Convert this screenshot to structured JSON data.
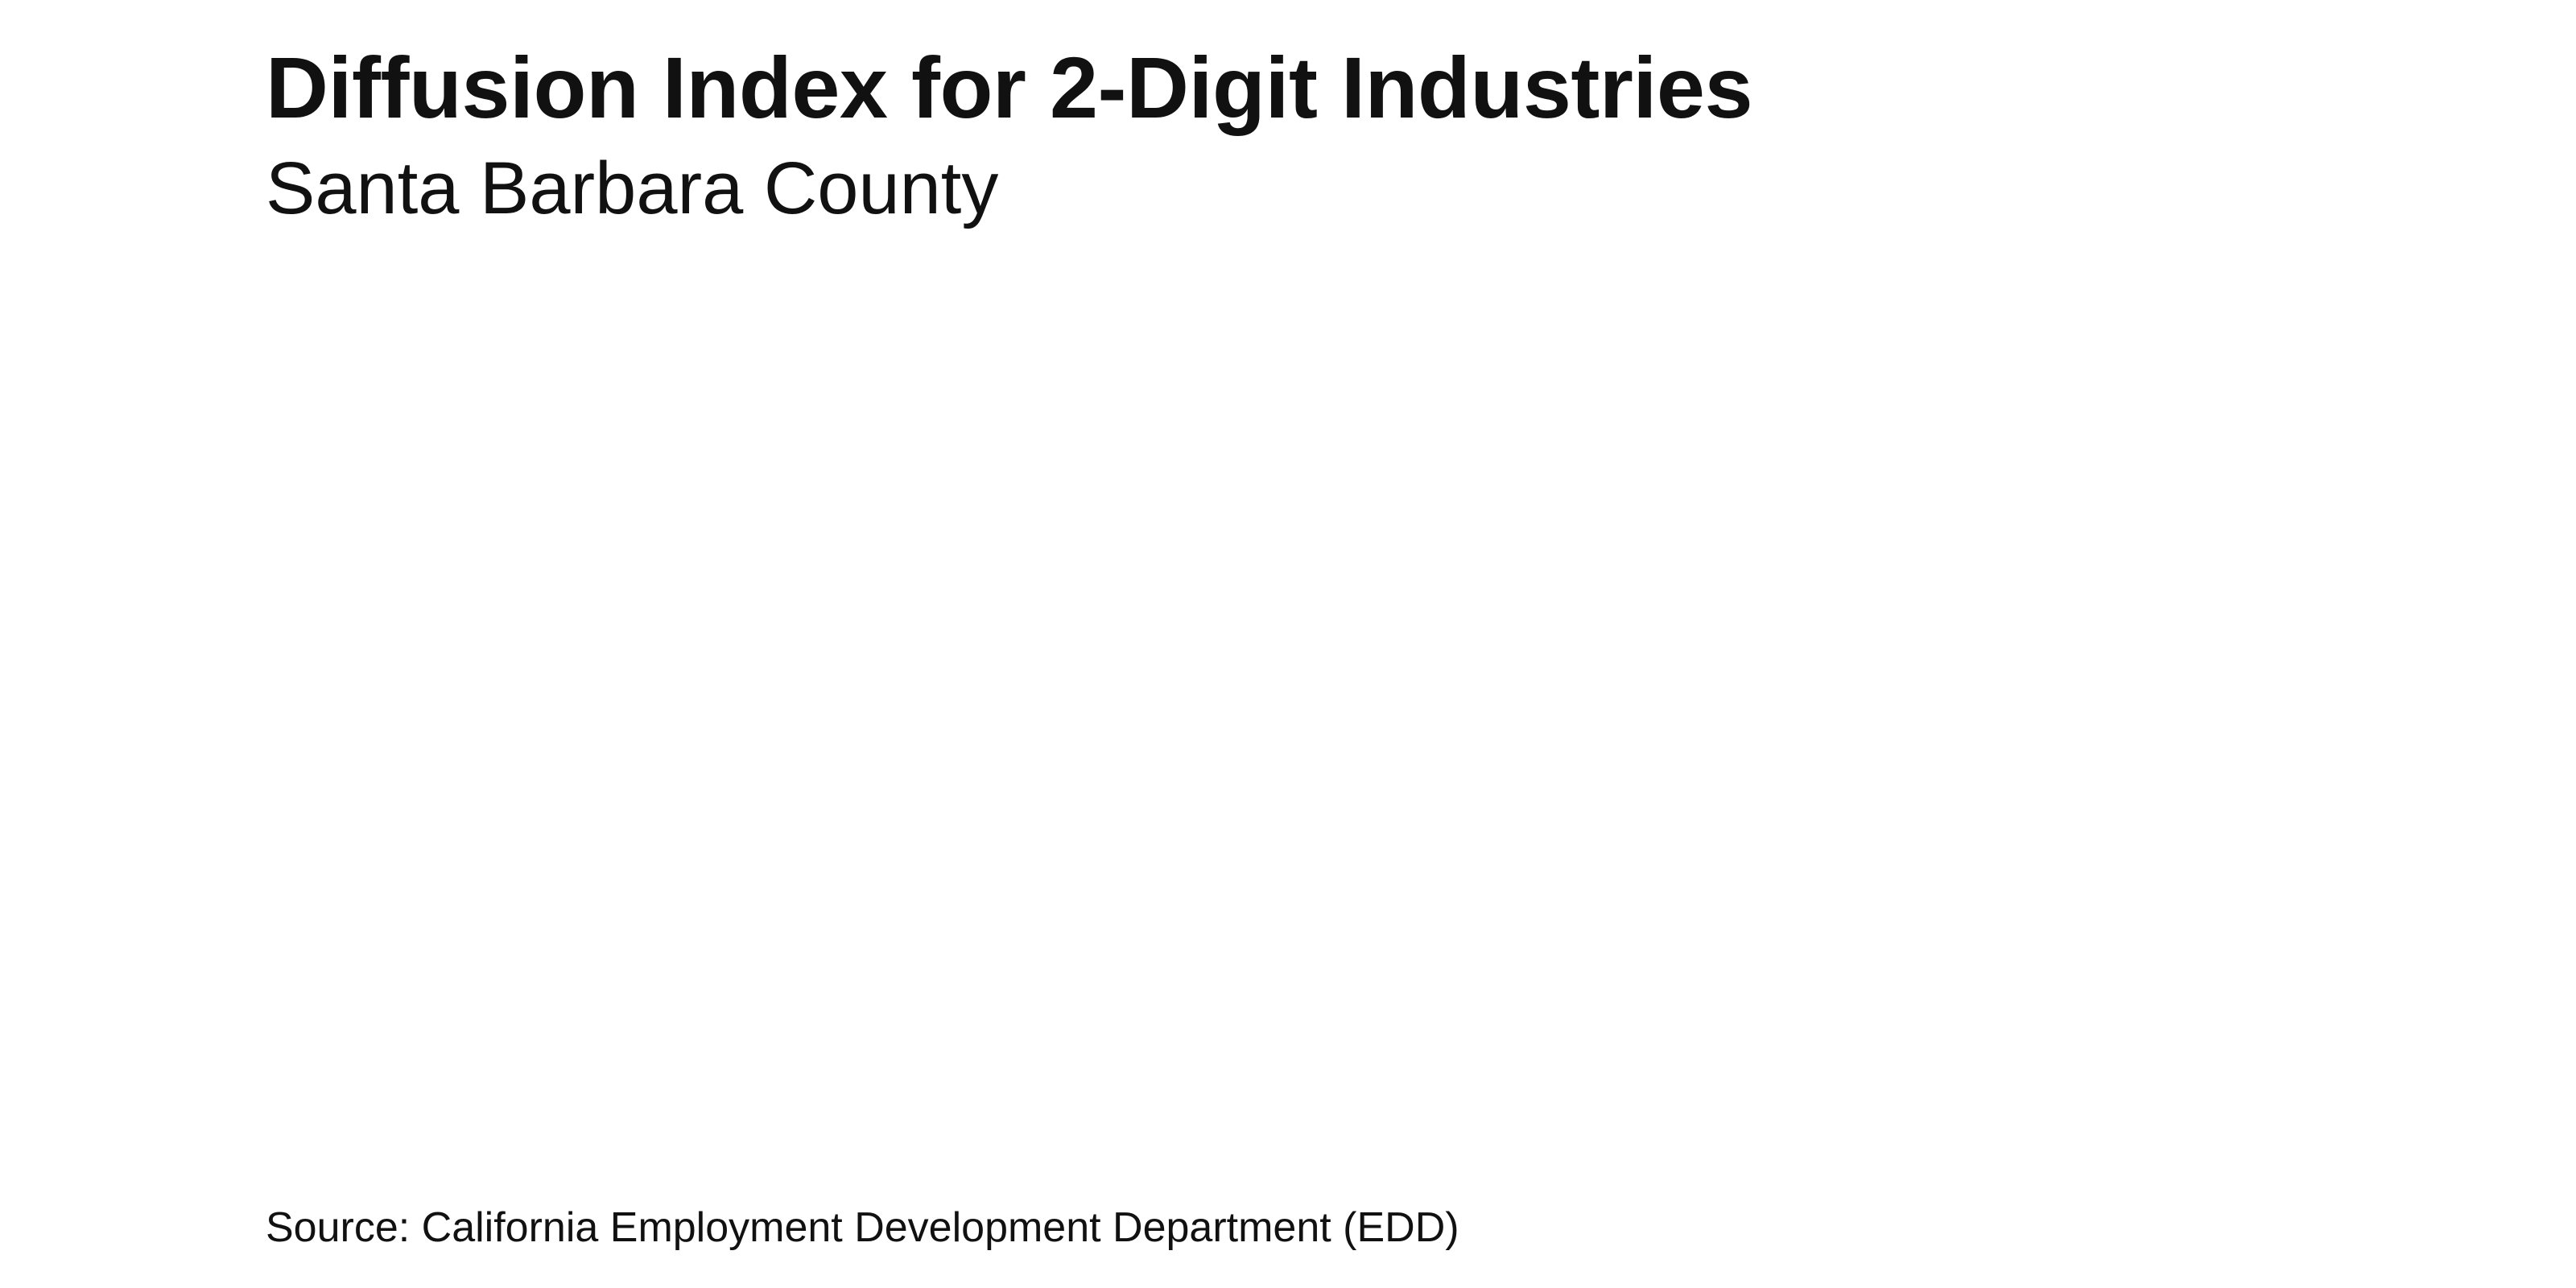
{
  "chart_data": {
    "type": "line",
    "title": "Diffusion Index for 2-Digit Industries",
    "subtitle": "Santa Barbara County",
    "source": "Source: California Employment Development Department (EDD)",
    "xlabel": "",
    "ylabel": "",
    "x": [],
    "series": [],
    "grid": false,
    "legend": "none"
  }
}
